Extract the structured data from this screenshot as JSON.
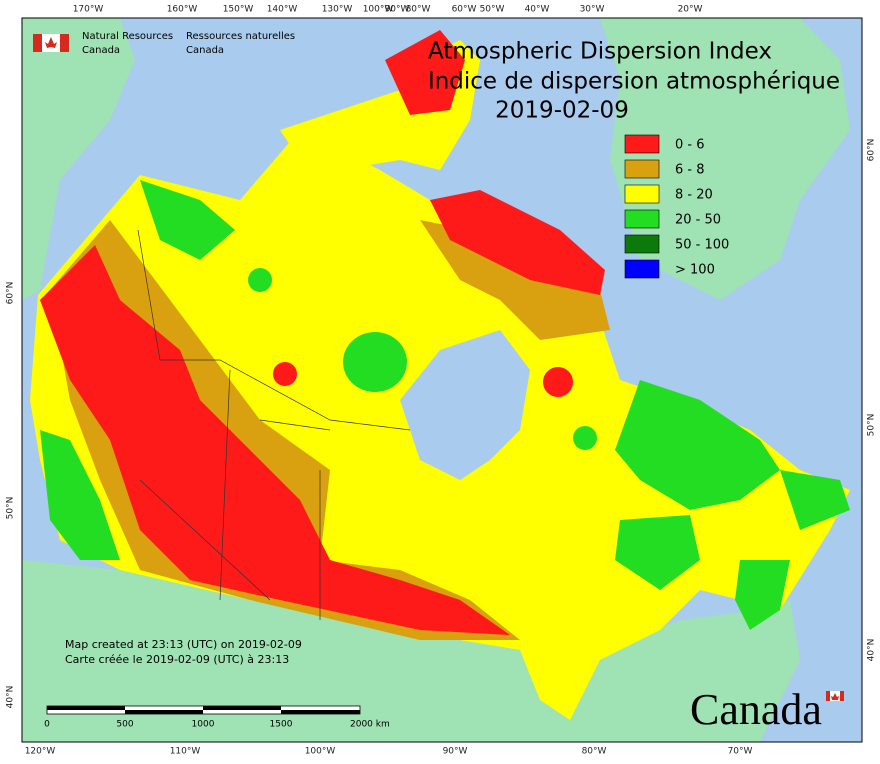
{
  "header": {
    "agency_en": [
      "Natural Resources",
      "Canada"
    ],
    "agency_fr": [
      "Ressources naturelles",
      "Canada"
    ],
    "title_en": "Atmospheric Dispersion Index",
    "title_fr": "Indice de dispersion atmosphérique",
    "date": "2019-02-09"
  },
  "legend": [
    {
      "label": "0 - 6",
      "color": "#ff1a1a"
    },
    {
      "label": "6 - 8",
      "color": "#d9a00f"
    },
    {
      "label": "8 - 20",
      "color": "#ffff00"
    },
    {
      "label": "20 - 50",
      "color": "#22dd22"
    },
    {
      "label": "50 - 100",
      "color": "#0b7a0b"
    },
    {
      "label": "> 100",
      "color": "#0000ff"
    }
  ],
  "graticule": {
    "top": [
      "170°W",
      "160°W",
      "150°W",
      "140°W",
      "130°W",
      "100°W",
      "90°W",
      "80°W",
      "60°W",
      "50°W",
      "40°W",
      "30°W",
      "20°W"
    ],
    "bottom": [
      "120°W",
      "110°W",
      "100°W",
      "90°W",
      "80°W",
      "70°W"
    ],
    "left": [
      "60°N",
      "50°N",
      "40°N"
    ],
    "right": [
      "60°N",
      "50°N",
      "40°N"
    ]
  },
  "credits": [
    "Map created at 23:13 (UTC) on 2019-02-09",
    "Carte créée le 2019-02-09 (UTC) à 23:13"
  ],
  "scale_bar": [
    "0",
    "500",
    "1000",
    "1500",
    "2000 km"
  ],
  "wordmark": "Canada"
}
